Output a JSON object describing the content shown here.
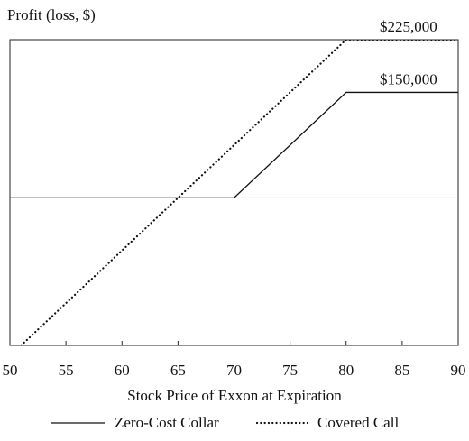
{
  "chart_data": {
    "type": "line",
    "ylabel": "Profit (loss, $)",
    "xlabel": "Stock Price of Exxon at Expiration",
    "xlim": [
      50,
      90
    ],
    "x_ticks": [
      50,
      55,
      60,
      65,
      70,
      75,
      80,
      85,
      90
    ],
    "ylim": [
      -210000,
      225000
    ],
    "zero_line": 0,
    "series": [
      {
        "name": "Zero-Cost Collar",
        "style": "solid",
        "color": "#111111",
        "x": [
          50,
          70,
          80,
          90
        ],
        "y": [
          0,
          0,
          150000,
          150000
        ]
      },
      {
        "name": "Covered Call",
        "style": "dotted",
        "color": "#111111",
        "x": [
          50,
          80,
          90
        ],
        "y": [
          -225000,
          225000,
          225000
        ]
      }
    ],
    "annotations": [
      {
        "text": "$225,000",
        "x": 85,
        "y": 225000
      },
      {
        "text": "$150,000",
        "x": 85,
        "y": 150000
      }
    ],
    "legend_position": "bottom"
  }
}
